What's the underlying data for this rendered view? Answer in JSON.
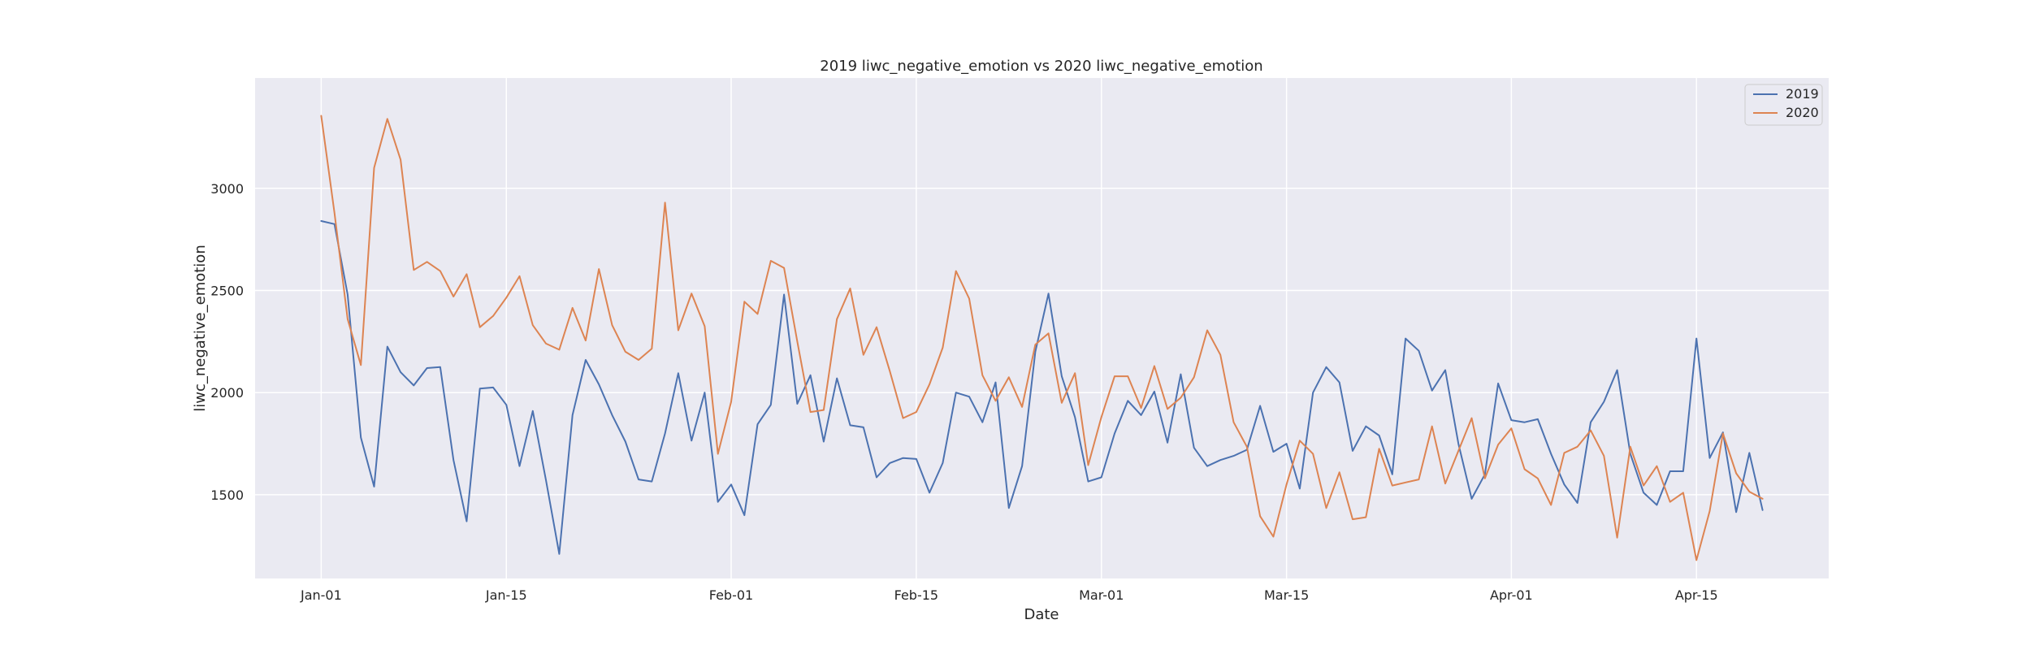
{
  "chart_data": {
    "type": "line",
    "title": "2019 liwc_negative_emotion vs 2020 liwc_negative_emotion",
    "xlabel": "Date",
    "ylabel": "liwc_negative_emotion",
    "x_start": "Jan-01",
    "x_ticks": [
      {
        "day": 0,
        "label": "Jan-01"
      },
      {
        "day": 14,
        "label": "Jan-15"
      },
      {
        "day": 31,
        "label": "Feb-01"
      },
      {
        "day": 45,
        "label": "Feb-15"
      },
      {
        "day": 59,
        "label": "Mar-01"
      },
      {
        "day": 73,
        "label": "Mar-15"
      },
      {
        "day": 90,
        "label": "Apr-01"
      },
      {
        "day": 104,
        "label": "Apr-15"
      }
    ],
    "y_ticks": [
      1500,
      2000,
      2500,
      3000
    ],
    "xlim": [
      -5,
      114
    ],
    "ylim": [
      1090,
      3540
    ],
    "grid": true,
    "legend_position": "top-right",
    "series": [
      {
        "name": "2019",
        "color": "#4c72b0",
        "values": [
          2840,
          2825,
          2480,
          1780,
          1540,
          2225,
          2100,
          2035,
          2120,
          2125,
          1670,
          1370,
          2020,
          2025,
          1940,
          1640,
          1910,
          1570,
          1210,
          1890,
          2160,
          2040,
          1890,
          1760,
          1575,
          1565,
          1800,
          2095,
          1765,
          2000,
          1465,
          1550,
          1400,
          1845,
          1940,
          2480,
          1945,
          2085,
          1760,
          2070,
          1840,
          1830,
          1585,
          1655,
          1680,
          1675,
          1510,
          1655,
          2000,
          1980,
          1855,
          2050,
          1435,
          1640,
          2200,
          2485,
          2080,
          1880,
          1565,
          1585,
          1800,
          1960,
          1890,
          2005,
          1755,
          2090,
          1730,
          1640,
          1670,
          1690,
          1720,
          1935,
          1710,
          1750,
          1530,
          2000,
          2125,
          2050,
          1715,
          1835,
          1790,
          1600,
          2265,
          2205,
          2010,
          2110,
          1750,
          1480,
          1600,
          2045,
          1865,
          1855,
          1870,
          1700,
          1550,
          1460,
          1855,
          1955,
          2110,
          1700,
          1510,
          1450,
          1615,
          1615,
          2265,
          1680,
          1805,
          1415,
          1705,
          1425
        ]
      },
      {
        "name": "2020",
        "color": "#dd8452",
        "values": [
          3355,
          2880,
          2360,
          2135,
          3100,
          3340,
          3140,
          2600,
          2640,
          2595,
          2470,
          2580,
          2320,
          2375,
          2465,
          2570,
          2330,
          2240,
          2210,
          2415,
          2255,
          2605,
          2330,
          2200,
          2160,
          2215,
          2930,
          2305,
          2485,
          2325,
          1700,
          1955,
          2445,
          2385,
          2645,
          2610,
          2250,
          1905,
          1915,
          2360,
          2510,
          2185,
          2320,
          2105,
          1875,
          1905,
          2040,
          2220,
          2595,
          2460,
          2085,
          1960,
          2075,
          1930,
          2235,
          2290,
          1950,
          2095,
          1645,
          1880,
          2080,
          2080,
          1925,
          2130,
          1920,
          1975,
          2075,
          2305,
          2185,
          1855,
          1735,
          1395,
          1295,
          1550,
          1765,
          1700,
          1435,
          1610,
          1380,
          1390,
          1725,
          1545,
          1560,
          1575,
          1835,
          1555,
          1715,
          1875,
          1580,
          1745,
          1825,
          1625,
          1580,
          1450,
          1705,
          1735,
          1815,
          1690,
          1290,
          1735,
          1545,
          1640,
          1465,
          1510,
          1180,
          1420,
          1800,
          1605,
          1515,
          1480
        ]
      }
    ]
  }
}
